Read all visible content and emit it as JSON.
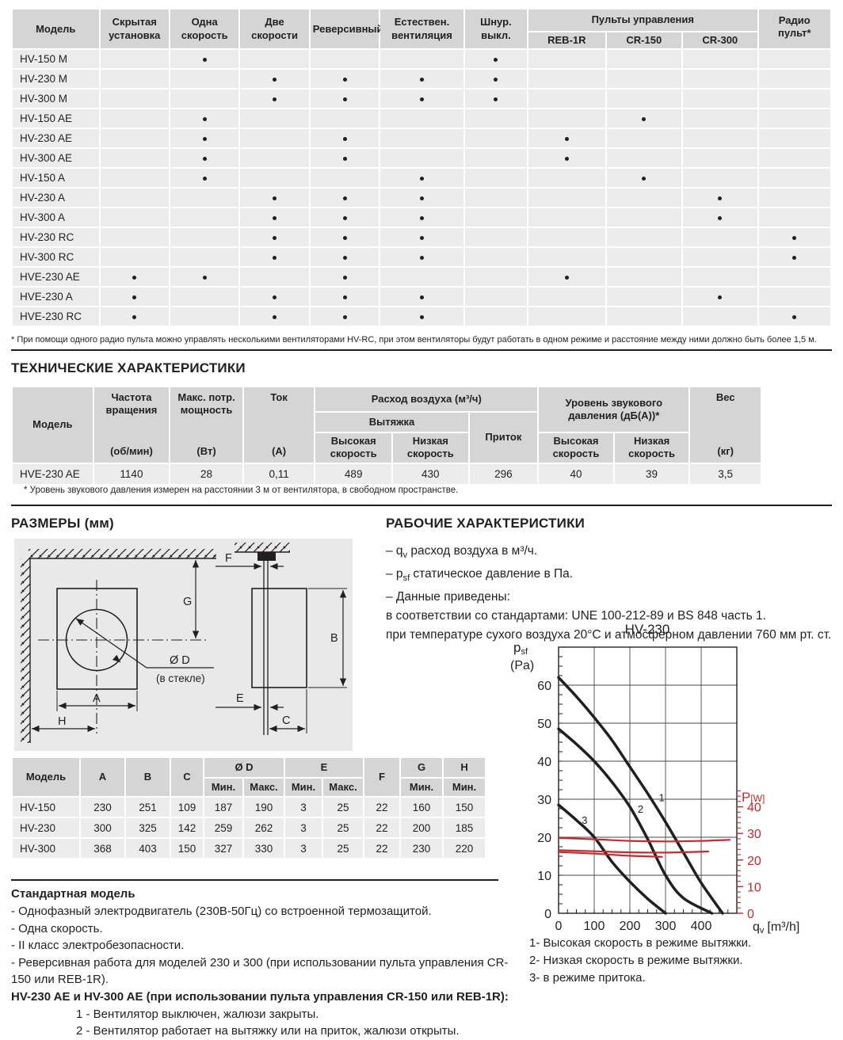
{
  "features_table": {
    "model_col": "Модель",
    "columns": [
      "Скрытая установка",
      "Одна скорость",
      "Две скорости",
      "Реверсивный",
      "Естествен. вентиляция",
      "Шнур. выкл."
    ],
    "remotes_group": "Пульты управления",
    "remote_cols": [
      "REB-1R",
      "CR-150",
      "CR-300"
    ],
    "radio_col": "Радио пульт*",
    "rows": [
      {
        "model": "HV-150 M",
        "dots": [
          0,
          1,
          0,
          0,
          0,
          1,
          0,
          0,
          0,
          0
        ]
      },
      {
        "model": "HV-230 M",
        "dots": [
          0,
          0,
          1,
          1,
          1,
          1,
          0,
          0,
          0,
          0
        ]
      },
      {
        "model": "HV-300 M",
        "dots": [
          0,
          0,
          1,
          1,
          1,
          1,
          0,
          0,
          0,
          0
        ]
      },
      {
        "model": "HV-150 AE",
        "dots": [
          0,
          1,
          0,
          0,
          0,
          0,
          0,
          1,
          0,
          0
        ]
      },
      {
        "model": "HV-230 AE",
        "dots": [
          0,
          1,
          0,
          1,
          0,
          0,
          1,
          0,
          0,
          0
        ]
      },
      {
        "model": "HV-300 AE",
        "dots": [
          0,
          1,
          0,
          1,
          0,
          0,
          1,
          0,
          0,
          0
        ]
      },
      {
        "model": "HV-150 A",
        "dots": [
          0,
          1,
          0,
          0,
          1,
          0,
          0,
          1,
          0,
          0
        ]
      },
      {
        "model": "HV-230 A",
        "dots": [
          0,
          0,
          1,
          1,
          1,
          0,
          0,
          0,
          1,
          0
        ]
      },
      {
        "model": "HV-300 A",
        "dots": [
          0,
          0,
          1,
          1,
          1,
          0,
          0,
          0,
          1,
          0
        ]
      },
      {
        "model": "HV-230 RC",
        "dots": [
          0,
          0,
          1,
          1,
          1,
          0,
          0,
          0,
          0,
          1
        ]
      },
      {
        "model": "HV-300 RC",
        "dots": [
          0,
          0,
          1,
          1,
          1,
          0,
          0,
          0,
          0,
          1
        ]
      },
      {
        "model": "HVE-230 AE",
        "dots": [
          1,
          1,
          0,
          1,
          0,
          0,
          1,
          0,
          0,
          0
        ]
      },
      {
        "model": "HVE-230 A",
        "dots": [
          1,
          0,
          1,
          1,
          1,
          0,
          0,
          0,
          1,
          0
        ]
      },
      {
        "model": "HVE-230 RC",
        "dots": [
          1,
          0,
          1,
          1,
          1,
          0,
          0,
          0,
          0,
          1
        ]
      }
    ]
  },
  "footnote_radio": "* При помощи одного радио пульта можно управлять несколькими вентиляторами HV-RC, при этом вентиляторы будут работать в одном режиме и расстояние между ними должно быть более 1,5 м.",
  "tech_section": {
    "title": "ТЕХНИЧЕСКИЕ ХАРАКТЕРИСТИКИ",
    "table": {
      "model_col": "Модель",
      "freq_name": "Частота вращения",
      "freq_unit": "(об/мин)",
      "power_name": "Макс. потр. мощность",
      "power_unit": "(Вт)",
      "current_name": "Ток",
      "current_unit": "(А)",
      "airflow_group": "Расход воздуха (м³/ч)",
      "exhaust": "Вытяжка",
      "intake": "Приток",
      "high": "Высокая скорость",
      "low": "Низкая скорость",
      "noise_group": "Уровень звукового давления (дБ(А))*",
      "noise_high": "Высокая скорость",
      "noise_low": "Низкая скорость",
      "weight_name": "Вес",
      "weight_unit": "(кг)",
      "row": {
        "model": "HVE-230 AE",
        "values": [
          "1140",
          "28",
          "0,11",
          "489",
          "430",
          "296",
          "40",
          "39",
          "3,5"
        ]
      }
    },
    "footnote": "* Уровень звукового давления измерен на расстоянии 3 м от вентилятора, в свободном пространстве."
  },
  "dimensions_section": {
    "title": "РАЗМЕРЫ (мм)",
    "diagram_labels": {
      "G": "G",
      "D": "Ø D",
      "glass": "(в стекле)",
      "A": "A",
      "H": "H",
      "F": "F",
      "B": "B",
      "E": "E",
      "C": "C"
    },
    "table": {
      "model_col": "Модель",
      "cols": [
        "A",
        "B",
        "C",
        "Ø D",
        "E",
        "F",
        "G",
        "H"
      ],
      "min": "Мин.",
      "max": "Макс.",
      "rows": [
        {
          "model": "HV-150",
          "values": [
            "230",
            "251",
            "109",
            "187",
            "190",
            "3",
            "25",
            "22",
            "160",
            "150"
          ]
        },
        {
          "model": "HV-230",
          "values": [
            "300",
            "325",
            "142",
            "259",
            "262",
            "3",
            "25",
            "22",
            "200",
            "185"
          ]
        },
        {
          "model": "HV-300",
          "values": [
            "368",
            "403",
            "150",
            "327",
            "330",
            "3",
            "25",
            "22",
            "230",
            "220"
          ]
        }
      ]
    }
  },
  "working_section": {
    "title": "РАБОЧИЕ ХАРАКТЕРИСТИКИ",
    "items": [
      {
        "pre": "– q",
        "sub": "v",
        "post": " расход воздуха в м³/ч."
      },
      {
        "pre": "– p",
        "sub": "sf",
        "post": " статическое давление в Па."
      },
      {
        "pre": "– Данные приведены:",
        "sub": "",
        "post": ""
      },
      {
        "pre": "в соответствии со стандартами: UNE 100-212-89 и BS 848 часть 1.",
        "sub": "",
        "post": ""
      },
      {
        "pre": "при температуре сухого воздуха 20°C и атмосферном давлении 760 мм рт. ст.",
        "sub": "",
        "post": ""
      }
    ]
  },
  "chart_data": {
    "type": "line",
    "title": "HV-230",
    "x_axis": {
      "min": 0,
      "max": 500,
      "ticks": [
        0,
        100,
        200,
        300,
        400
      ],
      "minor_step": 25
    },
    "y_axis": {
      "min": 0,
      "max": 70,
      "ticks": [
        0,
        10,
        20,
        30,
        40,
        50,
        60
      ],
      "minor_step": 2.5
    },
    "y2_axis": {
      "min": 0,
      "max": 100,
      "ticks": [
        0,
        10,
        20,
        30,
        40
      ],
      "minor_step": 2,
      "minor_max": 46,
      "color": "#c6292e"
    },
    "x_label": {
      "main": "q",
      "sub": "v",
      "unit": "[m³/h]"
    },
    "y_label": {
      "main": "p",
      "sub": "sf",
      "unit": "(Pa)"
    },
    "y2_label": {
      "main": "P",
      "unit": "[W]"
    },
    "grid": true,
    "series": [
      {
        "name": "Высокая скорость в режиме вытяжки",
        "axis": "y",
        "color": "#231f20",
        "width": 3.5,
        "label": "1",
        "label_at": [
          281,
          29.5
        ],
        "points": [
          [
            0,
            62
          ],
          [
            50,
            57
          ],
          [
            100,
            51.5
          ],
          [
            150,
            45.5
          ],
          [
            200,
            38.5
          ],
          [
            250,
            31.5
          ],
          [
            300,
            24
          ],
          [
            350,
            16
          ],
          [
            400,
            8
          ],
          [
            460,
            0
          ]
        ]
      },
      {
        "name": "Низкая скорость в режиме вытяжки",
        "axis": "y",
        "color": "#231f20",
        "width": 3.5,
        "label": "2",
        "label_at": [
          222,
          26.5
        ],
        "points": [
          [
            0,
            48.5
          ],
          [
            50,
            44.5
          ],
          [
            100,
            40
          ],
          [
            150,
            34.5
          ],
          [
            200,
            28
          ],
          [
            250,
            19.5
          ],
          [
            300,
            10
          ],
          [
            350,
            4
          ],
          [
            430,
            0
          ]
        ]
      },
      {
        "name": "в режиме притока",
        "axis": "y",
        "color": "#231f20",
        "width": 3.5,
        "label": "3",
        "label_at": [
          65,
          23.5
        ],
        "points": [
          [
            0,
            28.5
          ],
          [
            50,
            24.5
          ],
          [
            100,
            20
          ],
          [
            150,
            13.5
          ],
          [
            200,
            8.3
          ],
          [
            250,
            3.8
          ],
          [
            300,
            0
          ]
        ]
      },
      {
        "name": "P высокая скорость",
        "axis": "y2",
        "color": "#c6292e",
        "width": 2.2,
        "label": "",
        "label_at": null,
        "points": [
          [
            0,
            28.3
          ],
          [
            100,
            27.8
          ],
          [
            200,
            27.2
          ],
          [
            300,
            27
          ],
          [
            400,
            27.2
          ],
          [
            480,
            27.6
          ]
        ]
      },
      {
        "name": "P низкая скорость",
        "axis": "y2",
        "color": "#c6292e",
        "width": 2.2,
        "label": "",
        "label_at": null,
        "points": [
          [
            0,
            23.7
          ],
          [
            100,
            23.3
          ],
          [
            200,
            22.9
          ],
          [
            300,
            22.8
          ],
          [
            420,
            23.2
          ]
        ]
      },
      {
        "name": "P приток",
        "axis": "y2",
        "color": "#c6292e",
        "width": 2.2,
        "label": "",
        "label_at": null,
        "points": [
          [
            0,
            23.0
          ],
          [
            100,
            22.4
          ],
          [
            200,
            21.6
          ],
          [
            290,
            21.2
          ]
        ]
      }
    ]
  },
  "chart_legend": [
    "1- Высокая скорость в режиме вытяжки.",
    "2- Низкая скорость в режиме вытяжки.",
    "3- в режиме притока."
  ]
}
